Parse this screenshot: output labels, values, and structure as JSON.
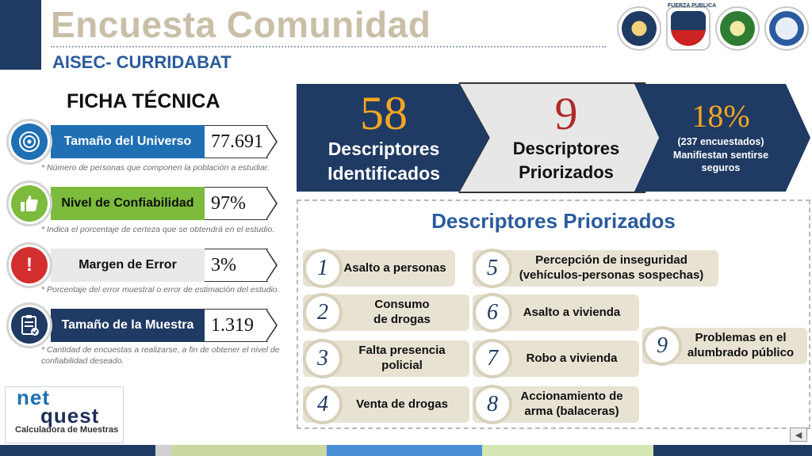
{
  "header": {
    "title": "Encuesta Comunidad",
    "subtitle": "AISEC- CURRIDABAT",
    "logo_text": "FUERZA PUBLICA"
  },
  "ficha": {
    "title": "FICHA TÉCNICA",
    "rows": [
      {
        "label": "Tamaño del Universo",
        "value": "77.691",
        "note": "* Número de personas que componen la población a estudiar.",
        "icon": "target-icon",
        "label_color": "#1f6fb5"
      },
      {
        "label": "Nivel de Confiabilidad",
        "value": "97%",
        "note": "* Indica el porcentaje de certeza que se obtendrá en el estudio.",
        "icon": "thumbs-up-icon",
        "label_color": "#7cbb3c"
      },
      {
        "label": "Margen de Error",
        "value": "3%",
        "note": "* Porcentaje del error muestral o error de estimación del estudio.",
        "icon": "alert-icon",
        "label_color": "#e9e9e9"
      },
      {
        "label": "Tamaño de la Muestra",
        "value": "1.319",
        "note": "* Cantidad de encuestas a realizarse, a fin de obtener el nivel de confiabilidad deseado.",
        "icon": "clipboard-check-icon",
        "label_color": "#1f3a63"
      }
    ]
  },
  "netquest": {
    "line1": "net",
    "line2": "quest",
    "caption": "Calculadora de Muestras"
  },
  "banners": [
    {
      "number": "58",
      "text_line1": "Descriptores",
      "text_line2": "Identificados"
    },
    {
      "number": "9",
      "text_line1": "Descriptores",
      "text_line2": "Priorizados"
    },
    {
      "number": "18%",
      "sub_line1": "(237 encuestados)",
      "sub_line2": "Manifiestan sentirse",
      "sub_line3": "seguros"
    }
  ],
  "priorizados": {
    "title": "Descriptores Priorizados",
    "items": [
      {
        "num": "1",
        "line1": "Asalto a personas",
        "line2": ""
      },
      {
        "num": "2",
        "line1": "Consumo",
        "line2": "de drogas"
      },
      {
        "num": "3",
        "line1": "Falta presencia",
        "line2": "policial"
      },
      {
        "num": "4",
        "line1": "Venta de drogas",
        "line2": ""
      },
      {
        "num": "5",
        "line1": "Percepción de inseguridad",
        "line2": "(vehículos-personas sospechas)"
      },
      {
        "num": "6",
        "line1": "Asalto a vivienda",
        "line2": ""
      },
      {
        "num": "7",
        "line1": "Robo a vivienda",
        "line2": ""
      },
      {
        "num": "8",
        "line1": "Accionamiento de",
        "line2": "arma (balaceras)"
      },
      {
        "num": "9",
        "line1": "Problemas en el",
        "line2": "alumbrado público"
      }
    ]
  },
  "colors": {
    "navy": "#1f3a63",
    "orange": "#f5a623",
    "dark_red": "#b22a2a",
    "title_beige": "#c9bfa7",
    "subtitle_blue": "#2a5b9e"
  }
}
